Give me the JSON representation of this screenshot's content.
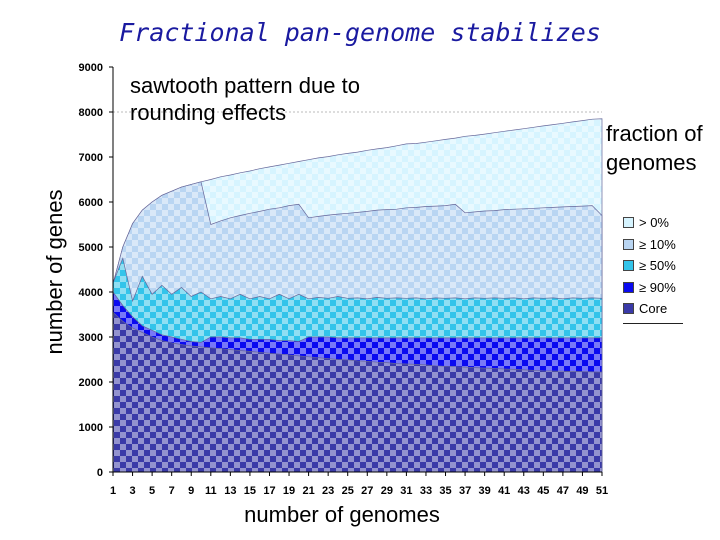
{
  "chart_data": {
    "type": "area",
    "title": "Fractional pan-genome stabilizes",
    "xlabel": "number of genomes",
    "ylabel": "number of genes",
    "annotations": [
      "sawtooth pattern due to",
      "rounding effects"
    ],
    "legend_title": [
      "fraction of",
      "genomes"
    ],
    "legend_position": "right",
    "x_ticks": [
      "1",
      "3",
      "5",
      "7",
      "9",
      "11",
      "13",
      "15",
      "17",
      "19",
      "21",
      "23",
      "25",
      "27",
      "29",
      "31",
      "33",
      "35",
      "37",
      "39",
      "41",
      "43",
      "45",
      "47",
      "49",
      "51"
    ],
    "y_ticks": [
      "0",
      "1000",
      "2000",
      "3000",
      "4000",
      "5000",
      "6000",
      "7000",
      "8000",
      "9000"
    ],
    "xlim": [
      1,
      51
    ],
    "ylim": [
      0,
      9000
    ],
    "x": [
      1,
      2,
      3,
      4,
      5,
      6,
      7,
      8,
      9,
      10,
      11,
      12,
      13,
      14,
      15,
      16,
      17,
      18,
      19,
      20,
      21,
      22,
      23,
      24,
      25,
      26,
      27,
      28,
      29,
      30,
      31,
      32,
      33,
      34,
      35,
      36,
      37,
      38,
      39,
      40,
      41,
      42,
      43,
      44,
      45,
      46,
      47,
      48,
      49,
      50,
      51
    ],
    "series": [
      {
        "name": "> 0%",
        "color": "#d6f4ff",
        "values": [
          4180,
          5000,
          5520,
          5820,
          6000,
          6150,
          6240,
          6330,
          6390,
          6450,
          6500,
          6560,
          6600,
          6650,
          6690,
          6740,
          6780,
          6820,
          6860,
          6900,
          6940,
          6980,
          7010,
          7050,
          7080,
          7110,
          7150,
          7180,
          7210,
          7250,
          7290,
          7300,
          7330,
          7360,
          7390,
          7420,
          7460,
          7480,
          7510,
          7540,
          7570,
          7600,
          7630,
          7660,
          7690,
          7720,
          7750,
          7780,
          7810,
          7840,
          7850
        ]
      },
      {
        "name": "≥ 10%",
        "color": "#b9d5f2",
        "values": [
          4180,
          5000,
          5520,
          5820,
          6000,
          6150,
          6240,
          6330,
          6390,
          6450,
          5500,
          5580,
          5650,
          5700,
          5750,
          5790,
          5840,
          5870,
          5920,
          5950,
          5650,
          5680,
          5710,
          5730,
          5750,
          5770,
          5790,
          5820,
          5830,
          5840,
          5870,
          5880,
          5900,
          5910,
          5920,
          5950,
          5760,
          5780,
          5800,
          5810,
          5830,
          5840,
          5850,
          5860,
          5870,
          5880,
          5890,
          5900,
          5910,
          5920,
          5700
        ]
      },
      {
        "name": "≥ 50%",
        "color": "#33c4ea",
        "values": [
          4200,
          4750,
          3800,
          4350,
          3950,
          4150,
          3950,
          4100,
          3900,
          4000,
          3850,
          3900,
          3850,
          3950,
          3850,
          3900,
          3850,
          3950,
          3850,
          3950,
          3850,
          3880,
          3860,
          3900,
          3860,
          3870,
          3850,
          3880,
          3860,
          3870,
          3860,
          3870,
          3850,
          3870,
          3860,
          3870,
          3850,
          3870,
          3860,
          3870,
          3860,
          3870,
          3850,
          3870,
          3860,
          3870,
          3850,
          3870,
          3860,
          3870,
          3860
        ]
      },
      {
        "name": "≥ 90%",
        "color": "#0a0af0",
        "values": [
          4000,
          3700,
          3450,
          3250,
          3150,
          3050,
          3000,
          2950,
          2900,
          2880,
          3000,
          3000,
          2980,
          2980,
          2950,
          2950,
          2950,
          2920,
          2920,
          2900,
          3000,
          3000,
          3000,
          2980,
          2980,
          2980,
          2980,
          2980,
          2980,
          2980,
          2980,
          2980,
          2980,
          2980,
          2980,
          2980,
          2980,
          2980,
          2980,
          2980,
          2980,
          2980,
          2980,
          2980,
          2980,
          2980,
          2980,
          2980,
          2980,
          2980,
          2980
        ]
      },
      {
        "name": "Core",
        "color": "#3a3aa8",
        "values": [
          3550,
          3350,
          3200,
          3100,
          3000,
          2920,
          2870,
          2830,
          2800,
          2780,
          2760,
          2740,
          2720,
          2700,
          2680,
          2660,
          2640,
          2620,
          2600,
          2580,
          2560,
          2540,
          2520,
          2500,
          2490,
          2470,
          2460,
          2440,
          2430,
          2410,
          2400,
          2390,
          2380,
          2360,
          2350,
          2340,
          2330,
          2320,
          2310,
          2300,
          2290,
          2280,
          2270,
          2260,
          2250,
          2245,
          2240,
          2235,
          2230,
          2225,
          2220
        ]
      }
    ]
  }
}
